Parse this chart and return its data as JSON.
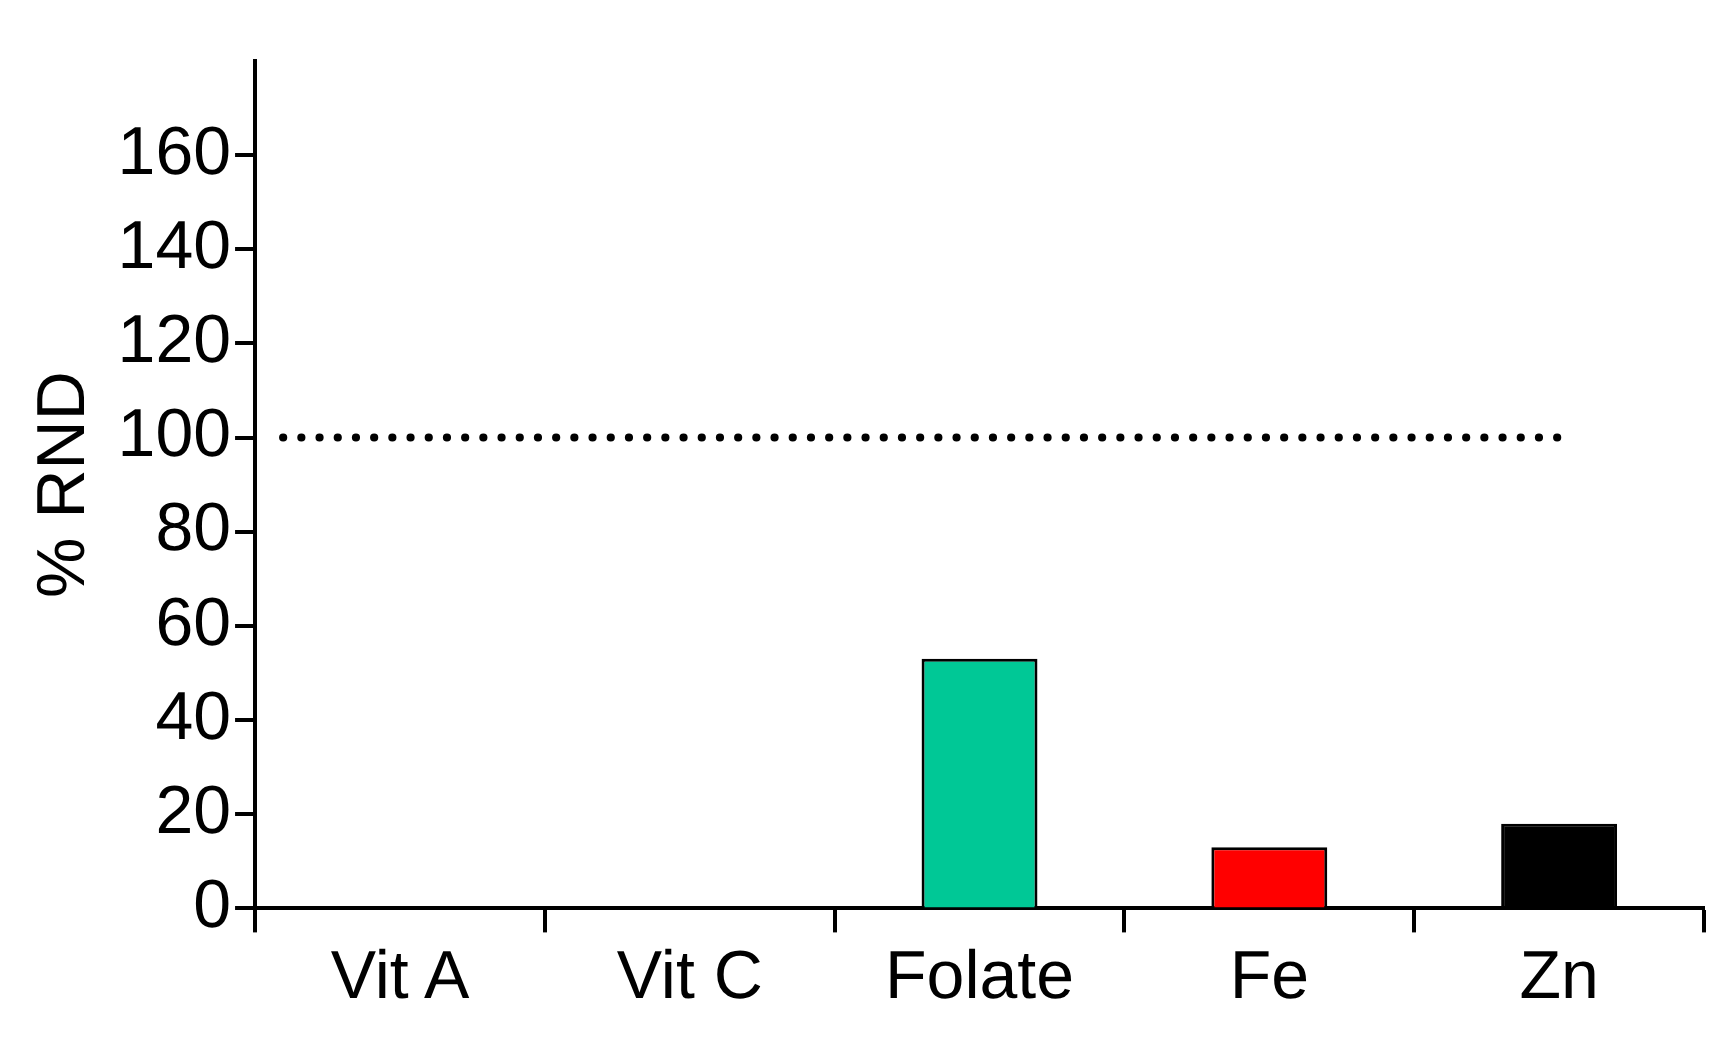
{
  "chart_data": {
    "type": "bar",
    "ylabel": "% RND",
    "categories": [
      "Vit A",
      "Vit C",
      "Folate",
      "Fe",
      "Zn"
    ],
    "values": [
      0,
      0,
      53,
      13,
      18
    ],
    "colors": [
      "#00c896",
      "#00c896",
      "#00c896",
      "#ff0000",
      "#000000"
    ],
    "ylim": [
      0,
      180
    ],
    "yticks": [
      0,
      20,
      40,
      60,
      80,
      100,
      120,
      140,
      160
    ],
    "grid": false,
    "legend": false,
    "ref_lines": [
      {
        "axis": "y",
        "value": 100,
        "line_style": "dotted",
        "color": "#000000"
      }
    ]
  }
}
